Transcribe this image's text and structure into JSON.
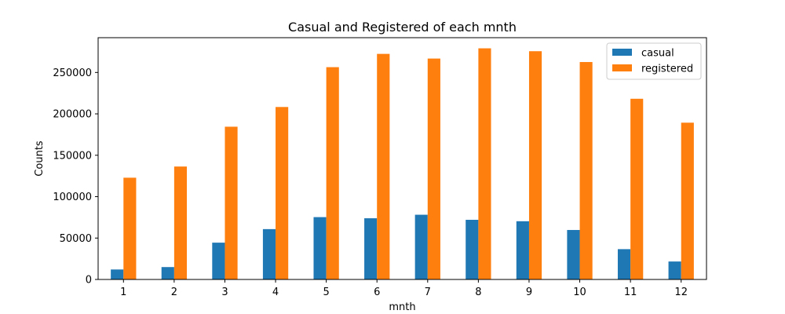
{
  "chart_data": {
    "type": "bar",
    "title": "Casual and Registered of each mnth",
    "xlabel": "mnth",
    "ylabel": "Counts",
    "categories": [
      "1",
      "2",
      "3",
      "4",
      "5",
      "6",
      "7",
      "8",
      "9",
      "10",
      "11",
      "12"
    ],
    "series": [
      {
        "name": "casual",
        "color": "#1f77b4",
        "values": [
          12042,
          14963,
          44444,
          60802,
          75285,
          73906,
          78157,
          72039,
          70323,
          59760,
          36603,
          21693
        ]
      },
      {
        "name": "registered",
        "color": "#ff7f0e",
        "values": [
          122891,
          136389,
          184476,
          208292,
          256401,
          272436,
          266791,
          279155,
          275668,
          262592,
          218228,
          189343
        ]
      }
    ],
    "ylim": [
      0,
      292000
    ],
    "yticks": [
      0,
      50000,
      100000,
      150000,
      200000,
      250000
    ],
    "grid": false,
    "legend_position": "top-right"
  }
}
